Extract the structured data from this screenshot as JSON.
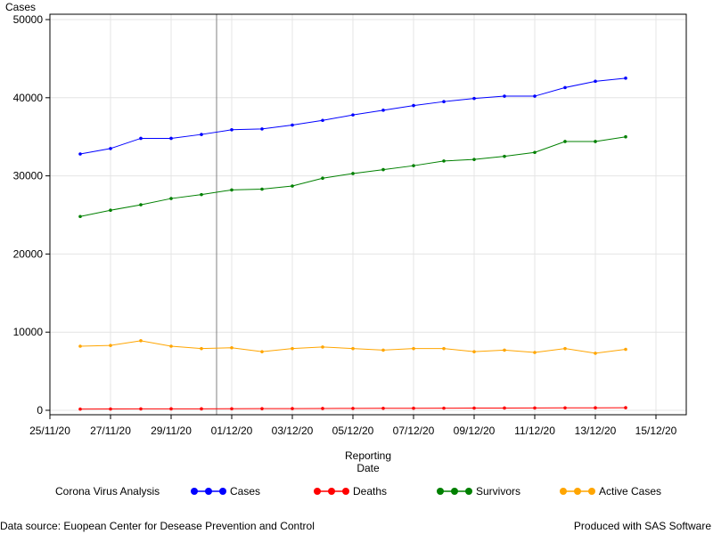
{
  "chart_data": {
    "type": "line",
    "ylabel": "Cases",
    "xlabel_line1": "Reporting",
    "xlabel_line2": "Date",
    "ylim": [
      0,
      50000
    ],
    "y_ticks": [
      0,
      10000,
      20000,
      30000,
      40000,
      50000
    ],
    "y_tick_labels": [
      "0",
      "10000",
      "20000",
      "30000",
      "40000",
      "50000"
    ],
    "x_tick_days": [
      25,
      27,
      29,
      31,
      33,
      35,
      37,
      39,
      41,
      43,
      45
    ],
    "x_tick_labels": [
      "25/11/20",
      "27/11/20",
      "29/11/20",
      "01/12/20",
      "03/12/20",
      "05/12/20",
      "07/12/20",
      "09/12/20",
      "11/12/20",
      "13/12/20",
      "15/12/20"
    ],
    "x_range": [
      25,
      46
    ],
    "x_dates": [
      "26/11/20",
      "27/11/20",
      "28/11/20",
      "29/11/20",
      "30/11/20",
      "01/12/20",
      "02/12/20",
      "03/12/20",
      "04/12/20",
      "05/12/20",
      "06/12/20",
      "07/12/20",
      "08/12/20",
      "09/12/20",
      "10/12/20",
      "11/12/20",
      "12/12/20",
      "13/12/20",
      "14/12/20"
    ],
    "reference_line_day": 30.5,
    "grid": true,
    "legend_title": "Corona Virus Analysis",
    "legend_position": "bottom",
    "series": [
      {
        "name": "Cases",
        "color": "#0000ff",
        "values": [
          32800,
          33500,
          34800,
          34800,
          35300,
          35900,
          36000,
          36500,
          37100,
          37800,
          38400,
          39000,
          39500,
          39900,
          40200,
          40200,
          41300,
          42100,
          42500
        ]
      },
      {
        "name": "Deaths",
        "color": "#ff0000",
        "values": [
          150,
          170,
          180,
          190,
          190,
          200,
          210,
          220,
          230,
          240,
          250,
          260,
          270,
          280,
          290,
          300,
          310,
          320,
          330
        ]
      },
      {
        "name": "Survivors",
        "color": "#008000",
        "values": [
          24800,
          25600,
          26300,
          27100,
          27600,
          28200,
          28300,
          28700,
          29700,
          30300,
          30800,
          31300,
          31900,
          32100,
          32500,
          33000,
          34400,
          34400,
          35000
        ]
      },
      {
        "name": "Active Cases",
        "color": "#ffa500",
        "values": [
          8200,
          8300,
          8900,
          8200,
          7900,
          8000,
          7500,
          7900,
          8100,
          7900,
          7700,
          7900,
          7900,
          7500,
          7700,
          7400,
          7900,
          7300,
          7800
        ]
      }
    ]
  },
  "footer": {
    "source": "Data source: Euopean Center for Desease Prevention and Control",
    "produced": "Produced with SAS Software"
  }
}
